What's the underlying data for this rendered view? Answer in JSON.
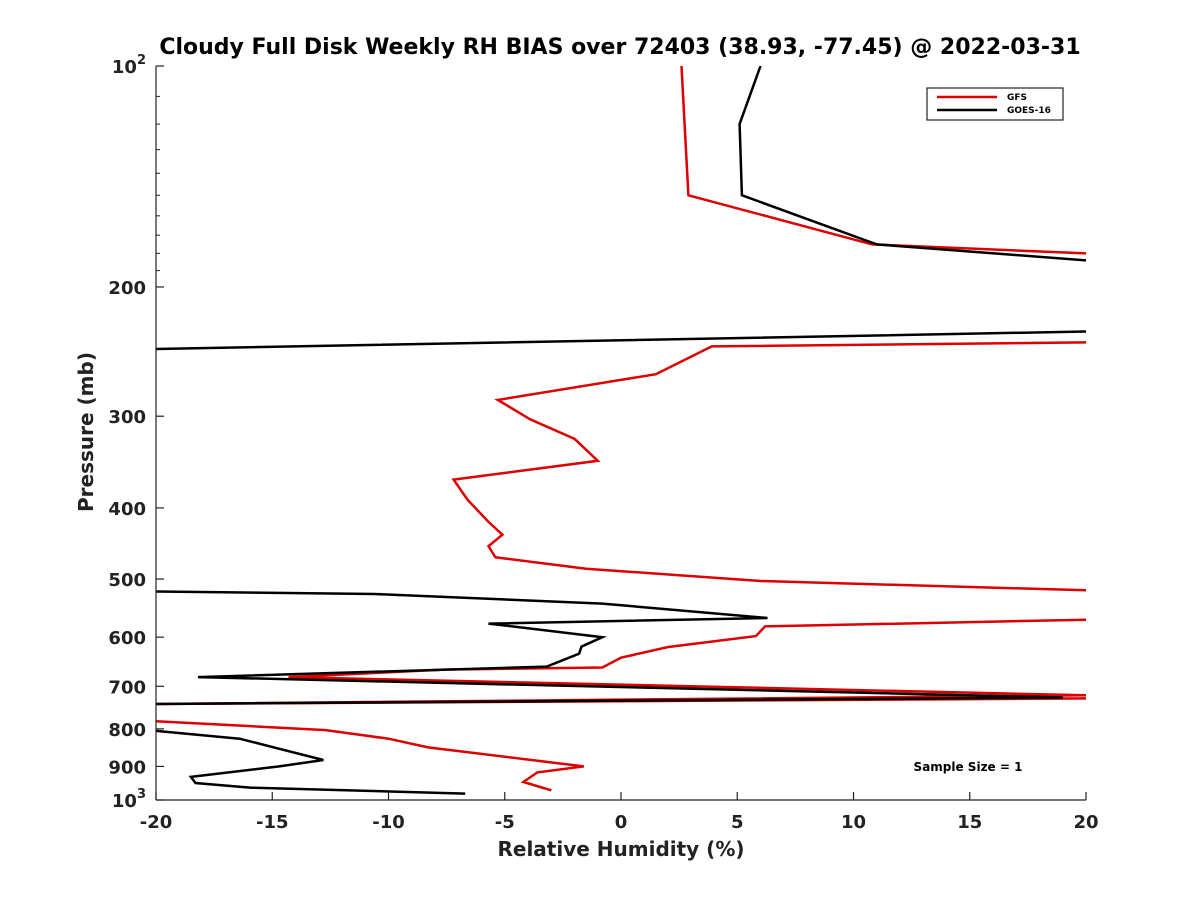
{
  "chart_data": {
    "type": "line",
    "title": "Cloudy Full Disk Weekly RH BIAS over 72403 (38.93, -77.45) @ 2022-03-31",
    "xlabel": "Relative Humidity (%)",
    "ylabel": "Pressure (mb)",
    "xlim": [
      -20,
      20
    ],
    "ylim": [
      100,
      1000
    ],
    "y_scale": "log",
    "y_reversed": true,
    "grid": false,
    "legend_position": "top-right",
    "x_ticks": [
      {
        "value": -20,
        "label": "-20"
      },
      {
        "value": -15,
        "label": "-15"
      },
      {
        "value": -10,
        "label": "-10"
      },
      {
        "value": -5,
        "label": "-5"
      },
      {
        "value": 0,
        "label": "0"
      },
      {
        "value": 5,
        "label": "5"
      },
      {
        "value": 10,
        "label": "10"
      },
      {
        "value": 15,
        "label": "15"
      },
      {
        "value": 20,
        "label": "20"
      }
    ],
    "y_ticks": [
      {
        "value": 100,
        "base": "10",
        "exp": "2"
      },
      {
        "value": 200,
        "base": "200",
        "exp": ""
      },
      {
        "value": 300,
        "base": "300",
        "exp": ""
      },
      {
        "value": 400,
        "base": "400",
        "exp": ""
      },
      {
        "value": 500,
        "base": "500",
        "exp": ""
      },
      {
        "value": 600,
        "base": "600",
        "exp": ""
      },
      {
        "value": 700,
        "base": "700",
        "exp": ""
      },
      {
        "value": 800,
        "base": "800",
        "exp": ""
      },
      {
        "value": 900,
        "base": "900",
        "exp": ""
      },
      {
        "value": 1000,
        "base": "10",
        "exp": "3"
      }
    ],
    "annotation": "Sample Size = 1",
    "series": [
      {
        "name": "GFS",
        "color": "#dd0000",
        "points": [
          [
            2.6,
            100
          ],
          [
            2.9,
            150
          ],
          [
            10.8,
            175
          ],
          [
            20,
            180
          ],
          [
            null,
            null
          ],
          [
            20,
            238
          ],
          [
            3.9,
            241
          ],
          [
            1.5,
            263
          ],
          [
            -5.3,
            285
          ],
          [
            -3.9,
            303
          ],
          [
            -2.0,
            322
          ],
          [
            -1.0,
            345
          ],
          [
            -7.2,
            366
          ],
          [
            -6.6,
            390
          ],
          [
            -5.7,
            418
          ],
          [
            -5.1,
            435
          ],
          [
            -5.7,
            451
          ],
          [
            -5.4,
            467
          ],
          [
            -1.5,
            484
          ],
          [
            6.0,
            503
          ],
          [
            20,
            518
          ],
          [
            null,
            null
          ],
          [
            20,
            568
          ],
          [
            6.2,
            580
          ],
          [
            5.8,
            598
          ],
          [
            2.0,
            619
          ],
          [
            0,
            640
          ],
          [
            -0.8,
            660
          ],
          [
            -7.5,
            664
          ],
          [
            -14.3,
            680
          ],
          [
            20,
            720
          ],
          [
            -20,
            740
          ],
          [
            20,
            727
          ],
          [
            null,
            null
          ],
          [
            -20,
            781
          ],
          [
            -12.7,
            803
          ],
          [
            -10.0,
            825
          ],
          [
            -8.3,
            848
          ],
          [
            -1.6,
            900
          ],
          [
            -3.6,
            917
          ],
          [
            -4.2,
            945
          ],
          [
            -3.0,
            970
          ]
        ]
      },
      {
        "name": "GOES-16",
        "color": "#000000",
        "points": [
          [
            6.0,
            100
          ],
          [
            5.1,
            120
          ],
          [
            5.2,
            150
          ],
          [
            11.0,
            175
          ],
          [
            20,
            184
          ],
          [
            null,
            null
          ],
          [
            20,
            230
          ],
          [
            -20,
            243
          ],
          [
            null,
            null
          ],
          [
            -20,
            520
          ],
          [
            -10.6,
            524
          ],
          [
            -0.8,
            540
          ],
          [
            6.3,
            565
          ],
          [
            -5.7,
            575
          ],
          [
            -0.8,
            600
          ],
          [
            -1.7,
            618
          ],
          [
            -1.8,
            632
          ],
          [
            -3.2,
            658
          ],
          [
            -18.2,
            680
          ],
          [
            19.0,
            725
          ],
          [
            -20,
            740
          ],
          [
            null,
            null
          ],
          [
            -20,
            805
          ],
          [
            -16.4,
            825
          ],
          [
            -14.8,
            850
          ],
          [
            -12.8,
            882
          ],
          [
            -14.7,
            900
          ],
          [
            -18.5,
            930
          ],
          [
            -18.3,
            948
          ],
          [
            -15.9,
            962
          ],
          [
            -6.7,
            980
          ]
        ]
      }
    ]
  }
}
